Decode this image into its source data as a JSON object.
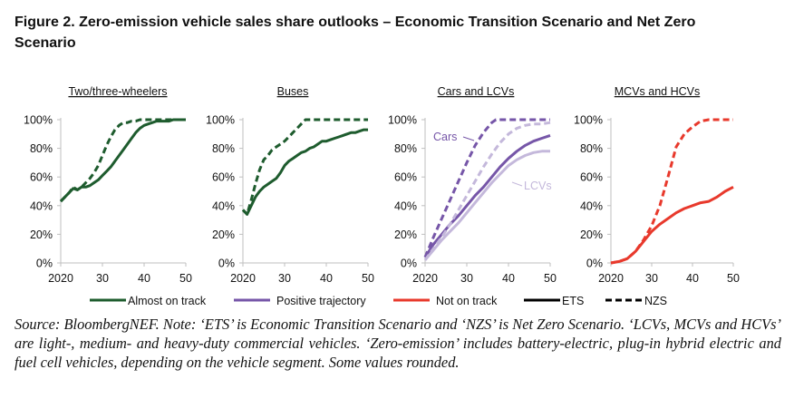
{
  "title": {
    "line1": "Figure 2. Zero-emission vehicle sales share outlooks – Economic Transition Scenario and Net Zero",
    "line2": "Scenario"
  },
  "colors": {
    "almost_on_track": "#1e5c2e",
    "positive_trajectory": "#7656a8",
    "positive_trajectory_light": "#c4b8db",
    "not_on_track": "#e8392c",
    "ets": "#000000",
    "axis": "#bfbfbf"
  },
  "legend": [
    {
      "label": "Almost on track",
      "color": "#1e5c2e",
      "style": "solid"
    },
    {
      "label": "Positive trajectory",
      "color": "#7656a8",
      "style": "solid"
    },
    {
      "label": "Not on track",
      "color": "#e8392c",
      "style": "solid"
    },
    {
      "label": "ETS",
      "color": "#000000",
      "style": "solid"
    },
    {
      "label": "NZS",
      "color": "#000000",
      "style": "dashed"
    }
  ],
  "chart_data": [
    {
      "type": "line",
      "title": "Two/three-wheelers",
      "xlabel": "",
      "ylabel": "",
      "xlim": [
        2020,
        2050
      ],
      "ylim": [
        0,
        100
      ],
      "x_ticks": [
        "2020",
        "30",
        "40",
        "50"
      ],
      "y_ticks": [
        "0%",
        "20%",
        "40%",
        "60%",
        "80%",
        "100%"
      ],
      "series": [
        {
          "scenario": "ETS",
          "style": "solid",
          "color": "#1e5c2e",
          "x": [
            2020,
            2021,
            2022,
            2023,
            2024,
            2025,
            2026,
            2027,
            2028,
            2029,
            2030,
            2031,
            2032,
            2033,
            2034,
            2035,
            2036,
            2037,
            2038,
            2039,
            2040,
            2041,
            2042,
            2043,
            2044,
            2045,
            2046,
            2047,
            2048,
            2049,
            2050
          ],
          "y": [
            43,
            46,
            49,
            52,
            51,
            53,
            53,
            54,
            56,
            58,
            61,
            64,
            67,
            71,
            75,
            79,
            83,
            87,
            91,
            94,
            96,
            97,
            98,
            99,
            99,
            99,
            99,
            100,
            100,
            100,
            100
          ]
        },
        {
          "scenario": "NZS",
          "style": "dashed",
          "color": "#1e5c2e",
          "x": [
            2020,
            2021,
            2022,
            2023,
            2024,
            2025,
            2026,
            2027,
            2028,
            2029,
            2030,
            2031,
            2032,
            2033,
            2034,
            2035,
            2036,
            2037,
            2038,
            2039,
            2040,
            2041,
            2042,
            2043,
            2044,
            2045,
            2046,
            2047,
            2048,
            2049,
            2050
          ],
          "y": [
            43,
            46,
            49,
            53,
            51,
            53,
            56,
            59,
            63,
            68,
            75,
            82,
            88,
            93,
            96,
            98,
            98,
            99,
            99,
            100,
            100,
            100,
            100,
            100,
            100,
            100,
            100,
            100,
            100,
            100,
            100
          ]
        }
      ]
    },
    {
      "type": "line",
      "title": "Buses",
      "xlabel": "",
      "ylabel": "",
      "xlim": [
        2020,
        2050
      ],
      "ylim": [
        0,
        100
      ],
      "x_ticks": [
        "2020",
        "30",
        "40",
        "50"
      ],
      "y_ticks": [
        "0%",
        "20%",
        "40%",
        "60%",
        "80%",
        "100%"
      ],
      "series": [
        {
          "scenario": "ETS",
          "style": "solid",
          "color": "#1e5c2e",
          "x": [
            2020,
            2021,
            2022,
            2023,
            2024,
            2025,
            2026,
            2027,
            2028,
            2029,
            2030,
            2031,
            2032,
            2033,
            2034,
            2035,
            2036,
            2037,
            2038,
            2039,
            2040,
            2041,
            2042,
            2043,
            2044,
            2045,
            2046,
            2047,
            2048,
            2049,
            2050
          ],
          "y": [
            37,
            34,
            40,
            46,
            50,
            53,
            55,
            57,
            59,
            63,
            68,
            71,
            73,
            75,
            77,
            78,
            80,
            81,
            83,
            85,
            85,
            86,
            87,
            88,
            89,
            90,
            91,
            91,
            92,
            93,
            93
          ]
        },
        {
          "scenario": "NZS",
          "style": "dashed",
          "color": "#1e5c2e",
          "x": [
            2020,
            2021,
            2022,
            2023,
            2024,
            2025,
            2026,
            2027,
            2028,
            2029,
            2030,
            2031,
            2032,
            2033,
            2034,
            2035,
            2036,
            2037,
            2038,
            2039,
            2040,
            2041,
            2042,
            2043,
            2044,
            2045,
            2046,
            2047,
            2048,
            2049,
            2050
          ],
          "y": [
            37,
            34,
            44,
            55,
            65,
            72,
            75,
            79,
            81,
            83,
            85,
            88,
            91,
            94,
            97,
            100,
            100,
            100,
            100,
            100,
            100,
            100,
            100,
            100,
            100,
            100,
            100,
            100,
            100,
            100,
            100
          ]
        }
      ]
    },
    {
      "type": "line",
      "title": "Cars and LCVs",
      "xlabel": "",
      "ylabel": "",
      "xlim": [
        2020,
        2050
      ],
      "ylim": [
        0,
        100
      ],
      "x_ticks": [
        "2020",
        "30",
        "40",
        "50"
      ],
      "y_ticks": [
        "0%",
        "20%",
        "40%",
        "60%",
        "80%",
        "100%"
      ],
      "annotations": [
        "Cars",
        "LCVs"
      ],
      "series": [
        {
          "name": "Cars",
          "scenario": "ETS",
          "style": "solid",
          "color": "#7656a8",
          "x": [
            2020,
            2022,
            2024,
            2026,
            2028,
            2030,
            2032,
            2034,
            2036,
            2038,
            2040,
            2042,
            2044,
            2046,
            2048,
            2050
          ],
          "y": [
            4,
            13,
            20,
            27,
            33,
            40,
            47,
            53,
            60,
            67,
            73,
            78,
            82,
            85,
            87,
            89
          ]
        },
        {
          "name": "Cars",
          "scenario": "NZS",
          "style": "dashed",
          "color": "#7656a8",
          "x": [
            2020,
            2022,
            2024,
            2026,
            2028,
            2030,
            2032,
            2034,
            2036,
            2037,
            2040,
            2045,
            2050
          ],
          "y": [
            4,
            18,
            31,
            44,
            57,
            70,
            82,
            91,
            98,
            100,
            100,
            100,
            100
          ]
        },
        {
          "name": "LCVs",
          "scenario": "ETS",
          "style": "solid",
          "color": "#c4b8db",
          "x": [
            2020,
            2022,
            2024,
            2026,
            2028,
            2030,
            2032,
            2034,
            2036,
            2038,
            2040,
            2042,
            2044,
            2046,
            2048,
            2050
          ],
          "y": [
            2,
            9,
            16,
            22,
            28,
            35,
            42,
            49,
            56,
            62,
            68,
            72,
            75,
            77,
            78,
            78
          ]
        },
        {
          "name": "LCVs",
          "scenario": "NZS",
          "style": "dashed",
          "color": "#c4b8db",
          "x": [
            2020,
            2022,
            2024,
            2026,
            2028,
            2030,
            2032,
            2034,
            2036,
            2038,
            2040,
            2042,
            2044,
            2046,
            2048,
            2050
          ],
          "y": [
            2,
            10,
            18,
            27,
            37,
            47,
            57,
            67,
            76,
            84,
            90,
            94,
            96,
            97,
            97,
            98
          ]
        }
      ]
    },
    {
      "type": "line",
      "title": "MCVs and HCVs",
      "xlabel": "",
      "ylabel": "",
      "xlim": [
        2020,
        2050
      ],
      "ylim": [
        0,
        100
      ],
      "x_ticks": [
        "2020",
        "30",
        "40",
        "50"
      ],
      "y_ticks": [
        "0%",
        "20%",
        "40%",
        "60%",
        "80%",
        "100%"
      ],
      "series": [
        {
          "scenario": "ETS",
          "style": "solid",
          "color": "#e8392c",
          "x": [
            2020,
            2022,
            2024,
            2026,
            2028,
            2030,
            2032,
            2034,
            2036,
            2038,
            2040,
            2042,
            2044,
            2046,
            2048,
            2050
          ],
          "y": [
            0,
            1,
            3,
            8,
            15,
            22,
            27,
            31,
            35,
            38,
            40,
            42,
            43,
            46,
            50,
            53
          ]
        },
        {
          "scenario": "NZS",
          "style": "dashed",
          "color": "#e8392c",
          "x": [
            2020,
            2022,
            2024,
            2026,
            2028,
            2030,
            2032,
            2034,
            2036,
            2038,
            2040,
            2042,
            2044,
            2046,
            2048,
            2050
          ],
          "y": [
            0,
            1,
            3,
            8,
            16,
            26,
            40,
            60,
            81,
            90,
            95,
            99,
            100,
            100,
            100,
            100
          ]
        }
      ]
    }
  ],
  "source": "Source: BloombergNEF. Note: ‘ETS’ is Economic Transition Scenario and ‘NZS’ is Net Zero Scenario. ‘LCVs, MCVs and HCVs’ are light-, medium- and heavy-duty commercial vehicles. ‘Zero-emission’ includes battery-electric, plug-in hybrid electric and fuel cell vehicles, depending on the vehicle segment. Some values rounded."
}
